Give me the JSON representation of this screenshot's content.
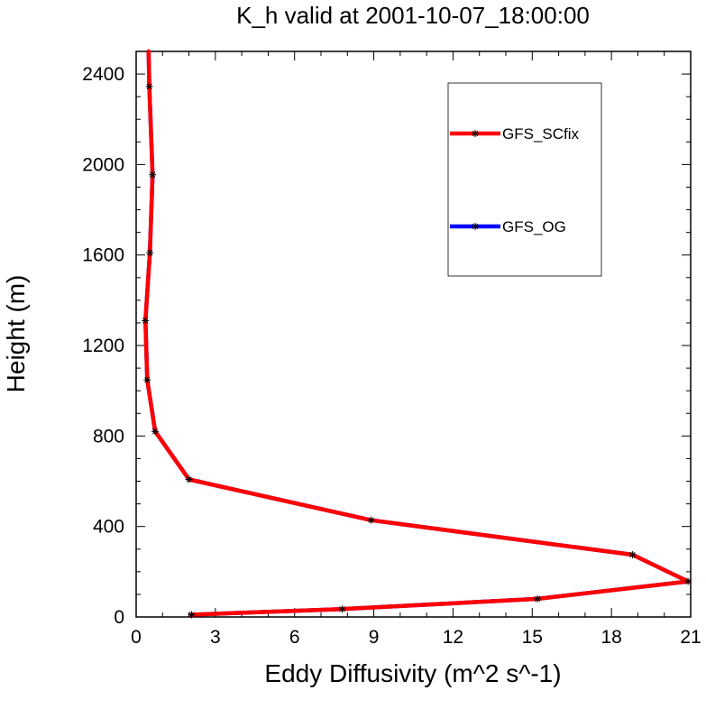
{
  "chart_data": {
    "type": "line",
    "title": "K_h valid at 2001-10-07_18:00:00",
    "xlabel": "Eddy Diffusivity (m^2 s^-1)",
    "ylabel": "Height (m)",
    "xlim": [
      0,
      21
    ],
    "ylim": [
      0,
      2500
    ],
    "xticks": [
      0,
      3,
      6,
      9,
      12,
      15,
      18,
      21
    ],
    "yticks": [
      0,
      400,
      800,
      1200,
      1600,
      2000,
      2400
    ],
    "legend_position": "top-right",
    "series": [
      {
        "name": "GFS_OG",
        "color": "#0000ff",
        "marker": "asterisk",
        "points": [
          [
            2.1,
            10
          ],
          [
            7.8,
            35
          ],
          [
            15.2,
            80
          ],
          [
            20.9,
            157
          ],
          [
            18.8,
            275
          ],
          [
            8.9,
            428
          ],
          [
            2.0,
            608
          ],
          [
            0.72,
            820
          ],
          [
            0.42,
            1048
          ],
          [
            0.35,
            1310
          ],
          [
            0.52,
            1610
          ],
          [
            0.62,
            1955
          ],
          [
            0.5,
            2345
          ],
          [
            0.47,
            2500
          ]
        ]
      },
      {
        "name": "GFS_SCfix",
        "color": "#ff0000",
        "marker": "asterisk",
        "points": [
          [
            2.1,
            10
          ],
          [
            7.8,
            35
          ],
          [
            15.2,
            80
          ],
          [
            20.9,
            157
          ],
          [
            18.8,
            275
          ],
          [
            8.9,
            428
          ],
          [
            2.0,
            608
          ],
          [
            0.72,
            820
          ],
          [
            0.42,
            1048
          ],
          [
            0.35,
            1310
          ],
          [
            0.52,
            1610
          ],
          [
            0.62,
            1955
          ],
          [
            0.5,
            2345
          ],
          [
            0.47,
            2500
          ]
        ]
      }
    ]
  }
}
